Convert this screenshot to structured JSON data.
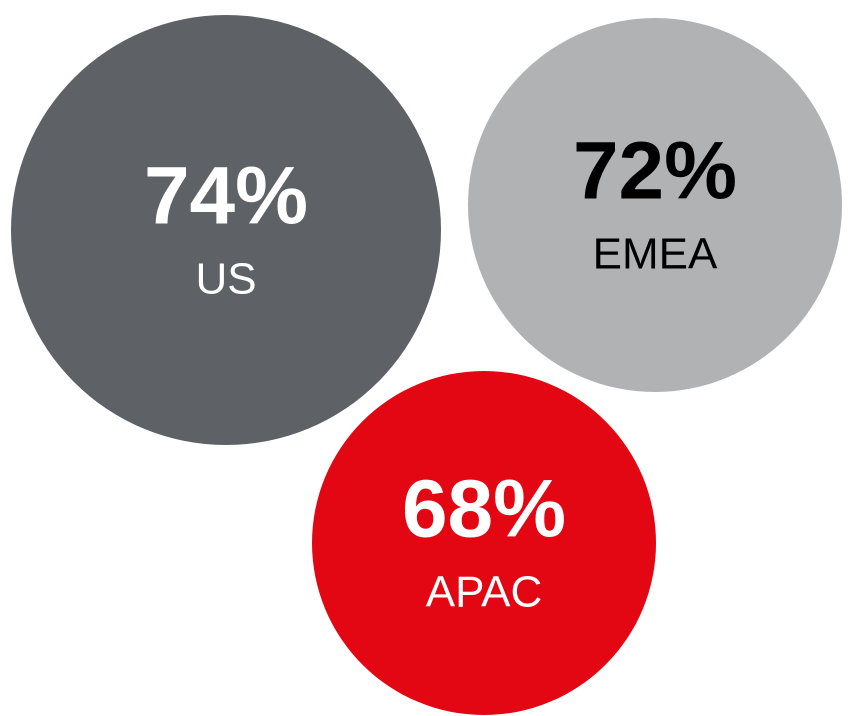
{
  "chart_data": {
    "type": "bubble",
    "categories": [
      "US",
      "EMEA",
      "APAC"
    ],
    "values": [
      74,
      72,
      68
    ],
    "value_labels": [
      "74%",
      "72%",
      "68%"
    ],
    "colors": [
      "#5e6166",
      "#b1b2b4",
      "#e30613"
    ],
    "label_colors": [
      "#ffffff",
      "#000000",
      "#ffffff"
    ]
  }
}
